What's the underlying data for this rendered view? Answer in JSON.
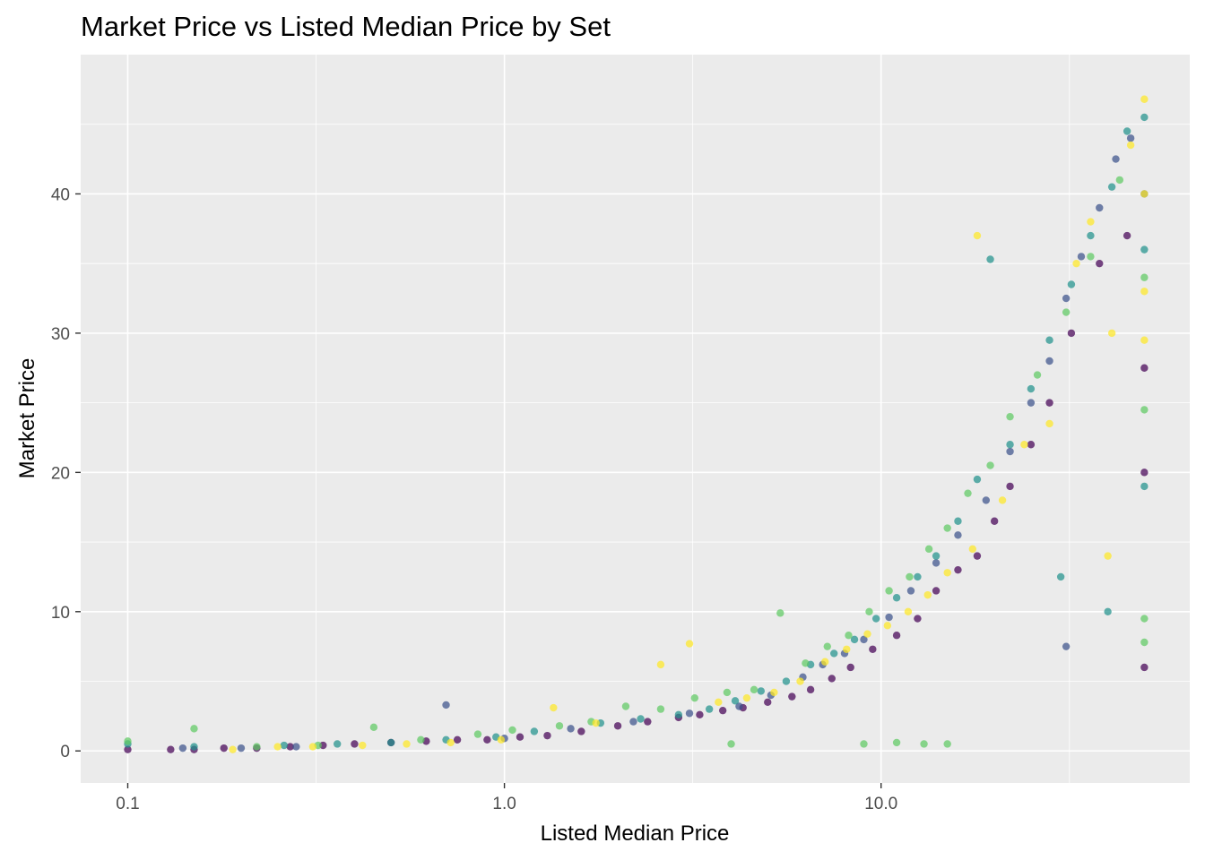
{
  "chart_data": {
    "type": "scatter",
    "title": "Market Price vs Listed Median Price by Set",
    "xlabel": "Listed Median Price",
    "ylabel": "Market Price",
    "x_scale": "log10",
    "x_range": [
      0.075,
      66
    ],
    "y_range": [
      -2.3,
      50.0
    ],
    "x_ticks": [
      0.1,
      1.0,
      10.0
    ],
    "x_tick_labels": [
      "0.1",
      "1.0",
      "10.0"
    ],
    "y_ticks": [
      0,
      10,
      20,
      30,
      40
    ],
    "y_tick_labels": [
      "0",
      "10",
      "20",
      "30",
      "40"
    ],
    "grid": true,
    "legend": "none",
    "palette": [
      "#440154",
      "#3b528b",
      "#21918c",
      "#5ec962",
      "#fde725"
    ],
    "series": [
      {
        "color": "#440154",
        "x": [
          0.1,
          0.13,
          0.15,
          0.18,
          0.22,
          0.27,
          0.33,
          0.4,
          0.5,
          0.62,
          0.75,
          0.9,
          1.1,
          1.3,
          1.6,
          2.0,
          2.4,
          2.9,
          3.3,
          3.8,
          4.3,
          5.0,
          5.8,
          6.5,
          7.4,
          8.3,
          9.5,
          11,
          12.5,
          14,
          16,
          18,
          20,
          22,
          25,
          28,
          32,
          38,
          45,
          50,
          50,
          50
        ],
        "y": [
          0.1,
          0.1,
          0.1,
          0.2,
          0.2,
          0.3,
          0.4,
          0.5,
          0.6,
          0.7,
          0.8,
          0.8,
          1.0,
          1.1,
          1.4,
          1.8,
          2.1,
          2.4,
          2.6,
          2.9,
          3.1,
          3.5,
          3.9,
          4.4,
          5.2,
          6.0,
          7.3,
          8.3,
          9.5,
          11.5,
          13.0,
          14.0,
          16.5,
          19.0,
          22.0,
          25.0,
          30.0,
          35.0,
          37.0,
          27.5,
          20.0,
          6.0
        ]
      },
      {
        "color": "#3b528b",
        "x": [
          0.14,
          0.2,
          0.28,
          0.7,
          1.0,
          1.5,
          2.2,
          3.1,
          4.2,
          5.1,
          6.2,
          7.0,
          8.0,
          9.0,
          10.5,
          12,
          14,
          16,
          19,
          22,
          25,
          28,
          31,
          34,
          38,
          42,
          46,
          50,
          31
        ],
        "y": [
          0.2,
          0.2,
          0.3,
          3.3,
          0.9,
          1.6,
          2.1,
          2.7,
          3.2,
          4.0,
          5.3,
          6.2,
          7.0,
          8.0,
          9.6,
          11.5,
          13.5,
          15.5,
          18.0,
          21.5,
          25.0,
          28.0,
          32.5,
          35.5,
          39.0,
          42.5,
          44.0,
          40.0,
          7.5
        ]
      },
      {
        "color": "#21918c",
        "x": [
          0.1,
          0.15,
          0.26,
          0.36,
          0.5,
          0.7,
          0.95,
          1.2,
          1.8,
          2.3,
          2.9,
          3.5,
          4.1,
          4.8,
          5.6,
          6.5,
          7.5,
          8.5,
          9.7,
          11,
          12.5,
          14,
          16,
          18,
          19.5,
          22,
          25,
          28,
          32,
          36,
          41,
          45,
          50,
          50,
          50,
          40,
          30
        ],
        "y": [
          0.5,
          0.3,
          0.4,
          0.5,
          0.6,
          0.8,
          1.0,
          1.4,
          2.0,
          2.3,
          2.6,
          3.0,
          3.6,
          4.3,
          5.0,
          6.2,
          7.0,
          8.0,
          9.5,
          11.0,
          12.5,
          14.0,
          16.5,
          19.5,
          35.3,
          22.0,
          26.0,
          29.5,
          33.5,
          37.0,
          40.5,
          44.5,
          45.5,
          36.0,
          19.0,
          10.0,
          12.5
        ]
      },
      {
        "color": "#5ec962",
        "x": [
          0.1,
          0.15,
          0.22,
          0.32,
          0.45,
          0.6,
          0.85,
          1.05,
          1.4,
          1.7,
          2.1,
          2.6,
          3.2,
          3.9,
          4.6,
          5.4,
          6.3,
          7.2,
          8.2,
          9.3,
          10.5,
          11.9,
          13.4,
          15,
          17,
          19.5,
          22,
          26,
          31,
          36,
          43,
          50,
          50,
          50,
          50,
          9.0,
          11.0,
          13.0,
          15.0,
          4.0
        ],
        "y": [
          0.7,
          1.6,
          0.3,
          0.4,
          1.7,
          0.8,
          1.2,
          1.5,
          1.8,
          2.1,
          3.2,
          3.0,
          3.8,
          4.2,
          4.4,
          9.9,
          6.3,
          7.5,
          8.3,
          10.0,
          11.5,
          12.5,
          14.5,
          16.0,
          18.5,
          20.5,
          24.0,
          27.0,
          31.5,
          35.5,
          41.0,
          34.0,
          24.5,
          9.5,
          7.8,
          0.5,
          0.6,
          0.5,
          0.5,
          0.5
        ]
      },
      {
        "color": "#fde725",
        "x": [
          0.19,
          0.25,
          0.31,
          0.42,
          0.55,
          0.72,
          0.98,
          1.35,
          1.75,
          2.6,
          3.1,
          3.7,
          4.4,
          5.2,
          6.1,
          7.1,
          8.1,
          9.2,
          10.4,
          11.8,
          13.3,
          15,
          17.5,
          18,
          21,
          24,
          28,
          33,
          36,
          41,
          46,
          50,
          50,
          50,
          50,
          40
        ],
        "y": [
          0.1,
          0.3,
          0.3,
          0.4,
          0.5,
          0.6,
          0.8,
          3.1,
          2.0,
          6.2,
          7.7,
          3.5,
          3.8,
          4.2,
          5.0,
          6.4,
          7.3,
          8.4,
          9.0,
          10.0,
          11.2,
          12.8,
          14.5,
          37.0,
          18.0,
          22.0,
          23.5,
          35.0,
          38.0,
          30.0,
          43.5,
          46.8,
          40.0,
          33.0,
          29.5,
          14.0
        ]
      }
    ]
  }
}
